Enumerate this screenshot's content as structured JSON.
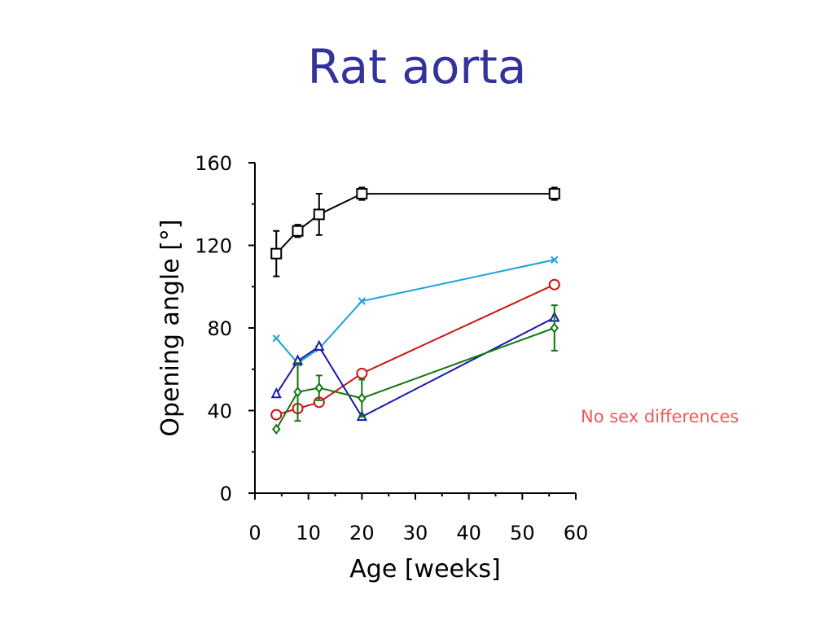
{
  "slide": {
    "title": "Rat aorta",
    "note": "No sex differences",
    "title_color": "#333399",
    "note_color": "#ee5a5a"
  },
  "chart_data": {
    "type": "line",
    "title": "",
    "xlabel": "Age [weeks]",
    "ylabel": "Opening angle [°]",
    "xlim": [
      0,
      60
    ],
    "ylim": [
      0,
      160
    ],
    "x_ticks": [
      0,
      10,
      20,
      30,
      40,
      50,
      60
    ],
    "y_ticks": [
      0,
      40,
      80,
      120,
      160
    ],
    "grid": false,
    "legend": "none",
    "series": [
      {
        "marker": "square",
        "color": "#000000",
        "x": [
          4,
          8,
          12,
          20,
          56
        ],
        "y": [
          116,
          127,
          135,
          145,
          145
        ],
        "err": [
          11,
          3,
          10,
          3,
          3
        ]
      },
      {
        "marker": "x",
        "color": "#1ba1dc",
        "x": [
          4,
          8,
          12,
          20,
          56
        ],
        "y": [
          75,
          63,
          70,
          93,
          113
        ]
      },
      {
        "marker": "circle",
        "color": "#cc1111",
        "x": [
          4,
          8,
          12,
          20,
          56
        ],
        "y": [
          38,
          41,
          44,
          58,
          101
        ]
      },
      {
        "marker": "triangle",
        "color": "#1a1aaa",
        "x": [
          4,
          8,
          12,
          20,
          56
        ],
        "y": [
          48,
          64,
          71,
          37,
          85
        ]
      },
      {
        "marker": "diamond",
        "color": "#117711",
        "x": [
          4,
          8,
          12,
          20,
          56
        ],
        "y": [
          31,
          49,
          51,
          46,
          80
        ],
        "err": [
          0,
          14,
          6,
          9,
          11
        ]
      }
    ]
  }
}
